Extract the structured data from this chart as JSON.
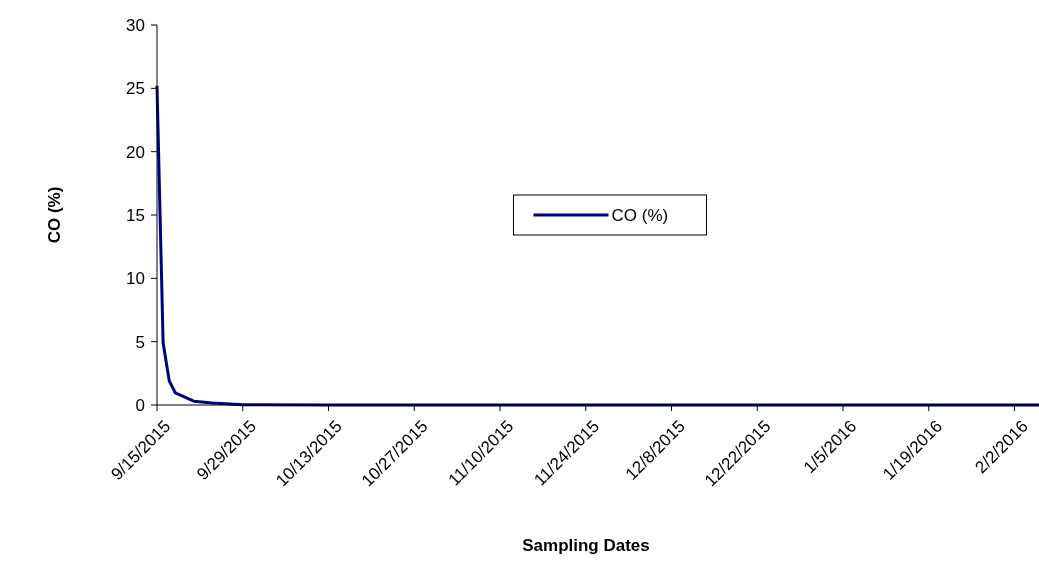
{
  "chart_data": {
    "type": "line",
    "xlabel": "Sampling Dates",
    "ylabel": "CO (%)",
    "x": [
      "2015-09-15",
      "2015-09-16",
      "2015-09-17",
      "2015-09-18",
      "2015-09-21",
      "2015-09-24",
      "2015-09-29",
      "2015-10-13",
      "2015-10-27",
      "2015-11-10",
      "2015-11-24",
      "2015-12-08",
      "2015-12-22",
      "2016-01-05",
      "2016-01-19",
      "2016-02-02",
      "2016-02-06"
    ],
    "series": [
      {
        "name": "CO (%)",
        "color": "#000080",
        "values": [
          25.2,
          4.9,
          1.9,
          0.95,
          0.3,
          0.15,
          0.02,
          0,
          0,
          0,
          0,
          0,
          0,
          0,
          0,
          0,
          0
        ]
      }
    ],
    "xlim": [
      "2015-09-15",
      "2016-02-06"
    ],
    "xticks": [
      {
        "value": "2015-09-15",
        "label": "9/15/2015"
      },
      {
        "value": "2015-09-29",
        "label": "9/29/2015"
      },
      {
        "value": "2015-10-13",
        "label": "10/13/2015"
      },
      {
        "value": "2015-10-27",
        "label": "10/27/2015"
      },
      {
        "value": "2015-11-10",
        "label": "11/10/2015"
      },
      {
        "value": "2015-11-24",
        "label": "11/24/2015"
      },
      {
        "value": "2015-12-08",
        "label": "12/8/2015"
      },
      {
        "value": "2015-12-22",
        "label": "12/22/2015"
      },
      {
        "value": "2016-01-05",
        "label": "1/5/2016"
      },
      {
        "value": "2016-01-19",
        "label": "1/19/2016"
      },
      {
        "value": "2016-02-02",
        "label": "2/2/2016"
      }
    ],
    "ylim": [
      0,
      30
    ],
    "yticks": [
      0,
      5,
      10,
      15,
      20,
      25,
      30
    ],
    "legend": "center",
    "grid": false,
    "marker": "none",
    "line_style": "solid"
  }
}
